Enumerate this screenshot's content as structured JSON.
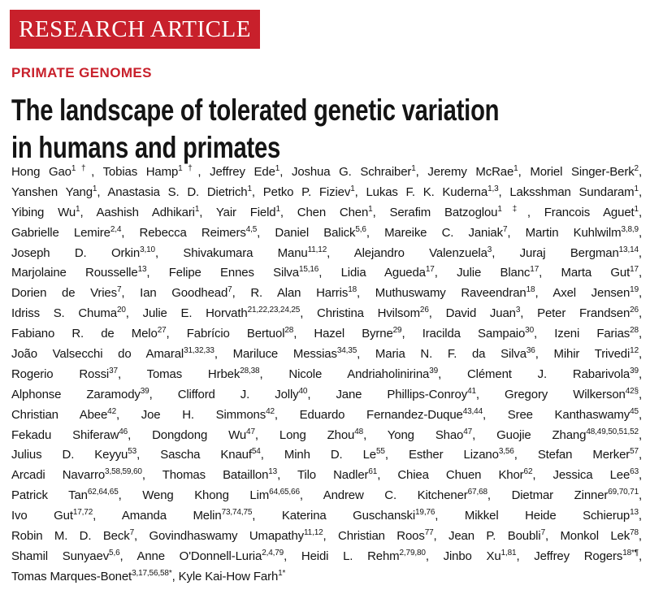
{
  "label": "RESEARCH ARTICLE",
  "section": "PRIMATE GENOMES",
  "title_lines": [
    "The landscape of tolerated genetic variation",
    "in humans and primates"
  ],
  "separator": ",",
  "author_lines": [
    [
      {
        "name": "Hong Gao",
        "sup": "1†"
      },
      {
        "name": "Tobias Hamp",
        "sup": "1†"
      },
      {
        "name": "Jeffrey Ede",
        "sup": "1"
      },
      {
        "name": "Joshua G. Schraiber",
        "sup": "1"
      },
      {
        "name": "Jeremy McRae",
        "sup": "1"
      },
      {
        "name": "Moriel Singer-Berk",
        "sup": "2"
      }
    ],
    [
      {
        "name": "Yanshen Yang",
        "sup": "1"
      },
      {
        "name": "Anastasia S. D. Dietrich",
        "sup": "1"
      },
      {
        "name": "Petko P. Fiziev",
        "sup": "1"
      },
      {
        "name": "Lukas F. K. Kuderna",
        "sup": "1,3"
      },
      {
        "name": "Laksshman Sundaram",
        "sup": "1"
      }
    ],
    [
      {
        "name": "Yibing Wu",
        "sup": "1"
      },
      {
        "name": "Aashish Adhikari",
        "sup": "1"
      },
      {
        "name": "Yair Field",
        "sup": "1"
      },
      {
        "name": "Chen Chen",
        "sup": "1"
      },
      {
        "name": "Serafim Batzoglou",
        "sup": "1‡"
      },
      {
        "name": "Francois Aguet",
        "sup": "1"
      }
    ],
    [
      {
        "name": "Gabrielle Lemire",
        "sup": "2,4"
      },
      {
        "name": "Rebecca Reimers",
        "sup": "4,5"
      },
      {
        "name": "Daniel Balick",
        "sup": "5,6"
      },
      {
        "name": "Mareike C. Janiak",
        "sup": "7"
      },
      {
        "name": "Martin Kuhlwilm",
        "sup": "3,8,9"
      }
    ],
    [
      {
        "name": "Joseph D. Orkin",
        "sup": "3,10"
      },
      {
        "name": "Shivakumara Manu",
        "sup": "11,12"
      },
      {
        "name": "Alejandro Valenzuela",
        "sup": "3"
      },
      {
        "name": "Juraj Bergman",
        "sup": "13,14"
      }
    ],
    [
      {
        "name": "Marjolaine Rousselle",
        "sup": "13"
      },
      {
        "name": "Felipe Ennes Silva",
        "sup": "15,16"
      },
      {
        "name": "Lidia Agueda",
        "sup": "17"
      },
      {
        "name": "Julie Blanc",
        "sup": "17"
      },
      {
        "name": "Marta Gut",
        "sup": "17"
      }
    ],
    [
      {
        "name": "Dorien de Vries",
        "sup": "7"
      },
      {
        "name": "Ian Goodhead",
        "sup": "7"
      },
      {
        "name": "R. Alan Harris",
        "sup": "18"
      },
      {
        "name": "Muthuswamy Raveendran",
        "sup": "18"
      },
      {
        "name": "Axel Jensen",
        "sup": "19"
      }
    ],
    [
      {
        "name": "Idriss S. Chuma",
        "sup": "20"
      },
      {
        "name": "Julie E. Horvath",
        "sup": "21,22,23,24,25"
      },
      {
        "name": "Christina Hvilsom",
        "sup": "26"
      },
      {
        "name": "David Juan",
        "sup": "3"
      },
      {
        "name": "Peter Frandsen",
        "sup": "26"
      }
    ],
    [
      {
        "name": "Fabiano R. de Melo",
        "sup": "27"
      },
      {
        "name": "Fabrício Bertuol",
        "sup": "28"
      },
      {
        "name": "Hazel Byrne",
        "sup": "29"
      },
      {
        "name": "Iracilda Sampaio",
        "sup": "30"
      },
      {
        "name": "Izeni Farias",
        "sup": "28"
      }
    ],
    [
      {
        "name": "João Valsecchi do Amaral",
        "sup": "31,32,33"
      },
      {
        "name": "Mariluce Messias",
        "sup": "34,35"
      },
      {
        "name": "Maria N. F. da Silva",
        "sup": "36"
      },
      {
        "name": "Mihir Trivedi",
        "sup": "12"
      }
    ],
    [
      {
        "name": "Rogerio Rossi",
        "sup": "37"
      },
      {
        "name": "Tomas Hrbek",
        "sup": "28,38"
      },
      {
        "name": "Nicole Andriaholinirina",
        "sup": "39"
      },
      {
        "name": "Clément J. Rabarivola",
        "sup": "39"
      }
    ],
    [
      {
        "name": "Alphonse Zaramody",
        "sup": "39"
      },
      {
        "name": "Clifford J. Jolly",
        "sup": "40"
      },
      {
        "name": "Jane Phillips-Conroy",
        "sup": "41"
      },
      {
        "name": "Gregory Wilkerson",
        "sup": "42§"
      }
    ],
    [
      {
        "name": "Christian Abee",
        "sup": "42"
      },
      {
        "name": "Joe H. Simmons",
        "sup": "42"
      },
      {
        "name": "Eduardo Fernandez-Duque",
        "sup": "43,44"
      },
      {
        "name": "Sree Kanthaswamy",
        "sup": "45"
      }
    ],
    [
      {
        "name": "Fekadu Shiferaw",
        "sup": "46"
      },
      {
        "name": "Dongdong Wu",
        "sup": "47"
      },
      {
        "name": "Long Zhou",
        "sup": "48"
      },
      {
        "name": "Yong Shao",
        "sup": "47"
      },
      {
        "name": "Guojie Zhang",
        "sup": "48,49,50,51,52"
      }
    ],
    [
      {
        "name": "Julius D. Keyyu",
        "sup": "53"
      },
      {
        "name": "Sascha Knauf",
        "sup": "54"
      },
      {
        "name": "Minh D. Le",
        "sup": "55"
      },
      {
        "name": "Esther Lizano",
        "sup": "3,56"
      },
      {
        "name": "Stefan Merker",
        "sup": "57"
      }
    ],
    [
      {
        "name": "Arcadi Navarro",
        "sup": "3,58,59,60"
      },
      {
        "name": "Thomas Bataillon",
        "sup": "13"
      },
      {
        "name": "Tilo Nadler",
        "sup": "61"
      },
      {
        "name": "Chiea Chuen Khor",
        "sup": "62"
      },
      {
        "name": "Jessica Lee",
        "sup": "63"
      }
    ],
    [
      {
        "name": "Patrick Tan",
        "sup": "62,64,65"
      },
      {
        "name": "Weng Khong Lim",
        "sup": "64,65,66"
      },
      {
        "name": "Andrew C. Kitchener",
        "sup": "67,68"
      },
      {
        "name": "Dietmar Zinner",
        "sup": "69,70,71"
      }
    ],
    [
      {
        "name": "Ivo Gut",
        "sup": "17,72"
      },
      {
        "name": "Amanda Melin",
        "sup": "73,74,75"
      },
      {
        "name": "Katerina Guschanski",
        "sup": "19,76"
      },
      {
        "name": "Mikkel Heide Schierup",
        "sup": "13"
      }
    ],
    [
      {
        "name": "Robin M. D. Beck",
        "sup": "7"
      },
      {
        "name": "Govindhaswamy Umapathy",
        "sup": "11,12"
      },
      {
        "name": "Christian Roos",
        "sup": "77"
      },
      {
        "name": "Jean P. Boubli",
        "sup": "7"
      },
      {
        "name": "Monkol Lek",
        "sup": "78"
      }
    ],
    [
      {
        "name": "Shamil Sunyaev",
        "sup": "5,6"
      },
      {
        "name": "Anne O'Donnell-Luria",
        "sup": "2,4,79"
      },
      {
        "name": "Heidi L. Rehm",
        "sup": "2,79,80"
      },
      {
        "name": "Jinbo Xu",
        "sup": "1,81"
      },
      {
        "name": "Jeffrey Rogers",
        "sup": "18*¶"
      }
    ],
    [
      {
        "name": "Tomas Marques-Bonet",
        "sup": "3,17,56,58*"
      },
      {
        "name": "Kyle Kai-How Farh",
        "sup": "1*"
      }
    ]
  ]
}
